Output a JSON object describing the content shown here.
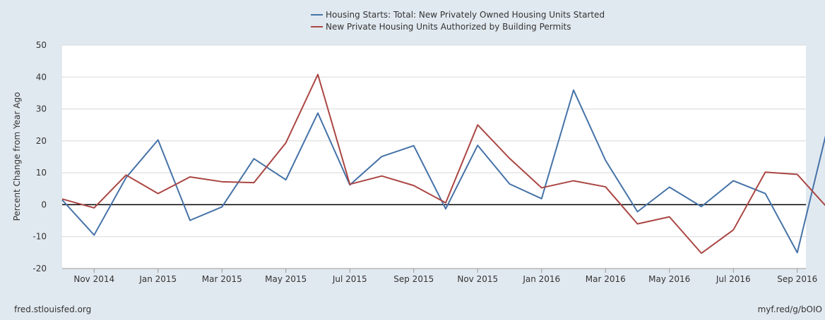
{
  "chart_data": {
    "type": "line",
    "title": "",
    "ylabel": "Percent Change from Year Ago",
    "xlabel": "",
    "ylim": [
      -20,
      50
    ],
    "yticks": [
      -20,
      -10,
      0,
      10,
      20,
      30,
      40,
      50
    ],
    "grid": true,
    "x": [
      "Oct 2014",
      "Nov 2014",
      "Dec 2014",
      "Jan 2015",
      "Feb 2015",
      "Mar 2015",
      "Apr 2015",
      "May 2015",
      "Jun 2015",
      "Jul 2015",
      "Aug 2015",
      "Sep 2015",
      "Oct 2015",
      "Nov 2015",
      "Dec 2015",
      "Jan 2016",
      "Feb 2016",
      "Mar 2016",
      "Apr 2016",
      "May 2016",
      "Jun 2016",
      "Jul 2016",
      "Aug 2016",
      "Sep 2016",
      "Oct 2016"
    ],
    "xtick_labels": [
      {
        "index": 1,
        "label": "Nov 2014"
      },
      {
        "index": 3,
        "label": "Jan 2015"
      },
      {
        "index": 5,
        "label": "Mar 2015"
      },
      {
        "index": 7,
        "label": "May 2015"
      },
      {
        "index": 9,
        "label": "Jul 2015"
      },
      {
        "index": 11,
        "label": "Sep 2015"
      },
      {
        "index": 13,
        "label": "Nov 2015"
      },
      {
        "index": 15,
        "label": "Jan 2016"
      },
      {
        "index": 17,
        "label": "Mar 2016"
      },
      {
        "index": 19,
        "label": "May 2016"
      },
      {
        "index": 21,
        "label": "Jul 2016"
      },
      {
        "index": 23,
        "label": "Sep 2016"
      }
    ],
    "series": [
      {
        "name": "Housing Starts: Total: New Privately Owned Housing Units Started",
        "color": "#4572a7",
        "values": [
          1.5,
          -9.5,
          8.5,
          20.3,
          -4.9,
          -0.7,
          14.4,
          7.8,
          28.7,
          6.2,
          15.1,
          18.5,
          -1.3,
          18.6,
          6.5,
          1.9,
          35.9,
          13.9,
          -2.2,
          5.5,
          -0.6,
          7.5,
          3.5,
          -15.0,
          26.3
        ]
      },
      {
        "name": "New Private Housing Units Authorized by Building Permits",
        "color": "#aa4643",
        "values": [
          1.8,
          -1.0,
          9.3,
          3.5,
          8.7,
          7.2,
          6.9,
          19.4,
          40.8,
          6.4,
          9.0,
          6.0,
          0.6,
          25.0,
          14.5,
          5.3,
          7.5,
          5.6,
          -6.0,
          -3.8,
          -15.2,
          -7.9,
          10.2,
          9.5,
          -1.6
        ]
      }
    ]
  },
  "footer": {
    "source": "fred.stlouisfed.org",
    "link": "myf.red/g/bOIO"
  }
}
